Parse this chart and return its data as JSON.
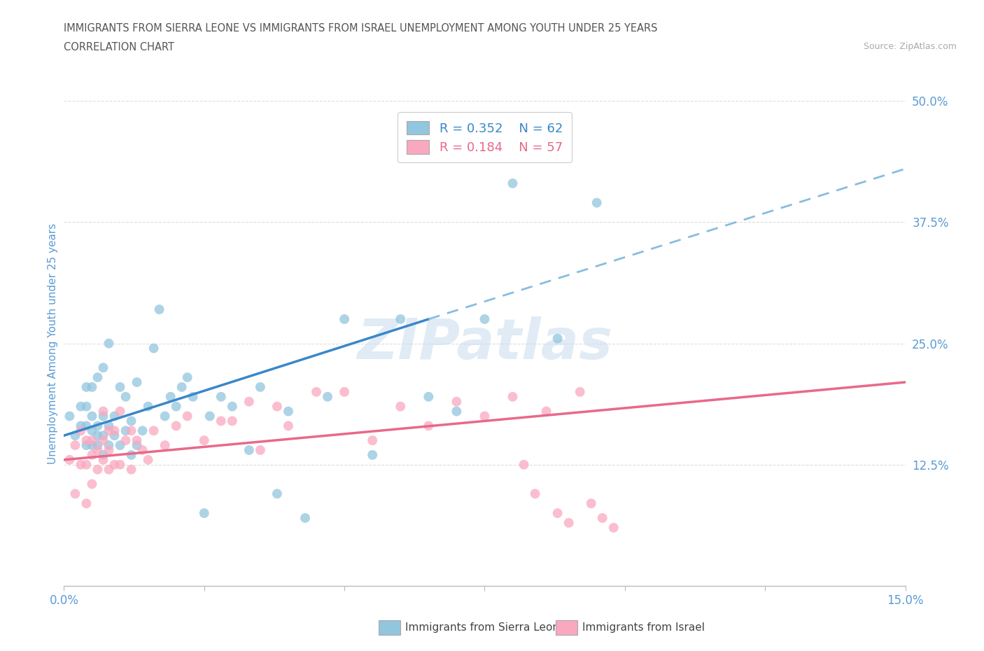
{
  "title_line1": "IMMIGRANTS FROM SIERRA LEONE VS IMMIGRANTS FROM ISRAEL UNEMPLOYMENT AMONG YOUTH UNDER 25 YEARS",
  "title_line2": "CORRELATION CHART",
  "source_text": "Source: ZipAtlas.com",
  "ylabel": "Unemployment Among Youth under 25 years",
  "xlim": [
    0.0,
    0.15
  ],
  "ylim": [
    0.0,
    0.5
  ],
  "xticks": [
    0.0,
    0.025,
    0.05,
    0.075,
    0.1,
    0.125,
    0.15
  ],
  "yticks": [
    0.0,
    0.125,
    0.25,
    0.375,
    0.5
  ],
  "color_blue": "#92c5de",
  "color_pink": "#f9a8bf",
  "color_blue_line": "#3a87c8",
  "color_blue_dash": "#88bde0",
  "color_pink_line": "#e8698a",
  "color_axis_labels": "#5b9bd5",
  "color_title": "#555555",
  "color_source": "#aaaaaa",
  "color_grid": "#dedede",
  "color_spine": "#bbbbbb",
  "watermark_text": "ZIPatlas",
  "legend_label1": "Immigrants from Sierra Leone",
  "legend_label2": "Immigrants from Israel",
  "R1": "0.352",
  "N1": "62",
  "R2": "0.184",
  "N2": "57",
  "trend_sl": [
    0.0,
    0.155,
    0.065,
    0.275
  ],
  "trend_sl_dash": [
    0.065,
    0.275,
    0.15,
    0.43
  ],
  "trend_isr": [
    0.0,
    0.13,
    0.15,
    0.21
  ],
  "sl_x": [
    0.001,
    0.002,
    0.003,
    0.003,
    0.004,
    0.004,
    0.004,
    0.004,
    0.005,
    0.005,
    0.005,
    0.005,
    0.006,
    0.006,
    0.006,
    0.006,
    0.007,
    0.007,
    0.007,
    0.007,
    0.008,
    0.008,
    0.008,
    0.009,
    0.009,
    0.01,
    0.01,
    0.011,
    0.011,
    0.012,
    0.012,
    0.013,
    0.013,
    0.014,
    0.015,
    0.016,
    0.017,
    0.018,
    0.019,
    0.02,
    0.021,
    0.022,
    0.023,
    0.025,
    0.026,
    0.028,
    0.03,
    0.033,
    0.035,
    0.038,
    0.04,
    0.043,
    0.047,
    0.05,
    0.055,
    0.06,
    0.065,
    0.07,
    0.075,
    0.08,
    0.088,
    0.095
  ],
  "sl_y": [
    0.175,
    0.155,
    0.165,
    0.185,
    0.145,
    0.165,
    0.185,
    0.205,
    0.145,
    0.16,
    0.175,
    0.205,
    0.145,
    0.155,
    0.165,
    0.215,
    0.135,
    0.155,
    0.175,
    0.225,
    0.145,
    0.165,
    0.25,
    0.155,
    0.175,
    0.145,
    0.205,
    0.16,
    0.195,
    0.135,
    0.17,
    0.145,
    0.21,
    0.16,
    0.185,
    0.245,
    0.285,
    0.175,
    0.195,
    0.185,
    0.205,
    0.215,
    0.195,
    0.075,
    0.175,
    0.195,
    0.185,
    0.14,
    0.205,
    0.095,
    0.18,
    0.07,
    0.195,
    0.275,
    0.135,
    0.275,
    0.195,
    0.18,
    0.275,
    0.415,
    0.255,
    0.395
  ],
  "isr_x": [
    0.001,
    0.002,
    0.002,
    0.003,
    0.003,
    0.004,
    0.004,
    0.004,
    0.005,
    0.005,
    0.005,
    0.006,
    0.006,
    0.007,
    0.007,
    0.007,
    0.008,
    0.008,
    0.008,
    0.009,
    0.009,
    0.01,
    0.01,
    0.011,
    0.012,
    0.012,
    0.013,
    0.014,
    0.015,
    0.016,
    0.018,
    0.02,
    0.022,
    0.025,
    0.028,
    0.03,
    0.033,
    0.035,
    0.038,
    0.04,
    0.045,
    0.05,
    0.055,
    0.06,
    0.065,
    0.07,
    0.075,
    0.08,
    0.082,
    0.084,
    0.086,
    0.088,
    0.09,
    0.092,
    0.094,
    0.096,
    0.098
  ],
  "isr_y": [
    0.13,
    0.095,
    0.145,
    0.125,
    0.16,
    0.085,
    0.125,
    0.15,
    0.135,
    0.105,
    0.15,
    0.12,
    0.14,
    0.13,
    0.15,
    0.18,
    0.12,
    0.14,
    0.16,
    0.125,
    0.16,
    0.125,
    0.18,
    0.15,
    0.12,
    0.16,
    0.15,
    0.14,
    0.13,
    0.16,
    0.145,
    0.165,
    0.175,
    0.15,
    0.17,
    0.17,
    0.19,
    0.14,
    0.185,
    0.165,
    0.2,
    0.2,
    0.15,
    0.185,
    0.165,
    0.19,
    0.175,
    0.195,
    0.125,
    0.095,
    0.18,
    0.075,
    0.065,
    0.2,
    0.085,
    0.07,
    0.06
  ]
}
